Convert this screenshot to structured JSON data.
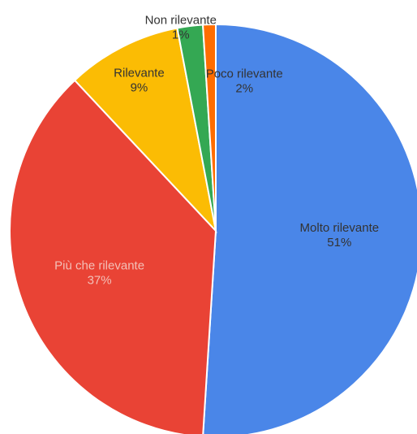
{
  "chart_data": {
    "type": "pie",
    "title": "",
    "start_angle_deg": 0,
    "direction": "clockwise",
    "slices": [
      {
        "label": "Molto rilevante",
        "value": 51,
        "value_label": "51%",
        "color": "#4a86e8",
        "label_color": "#333333"
      },
      {
        "label": "Più che rilevante",
        "value": 37,
        "value_label": "37%",
        "color": "#e94335",
        "label_color": "#f3c0b8"
      },
      {
        "label": "Rilevante",
        "value": 9,
        "value_label": "9%",
        "color": "#fbbc04",
        "label_color": "#333333"
      },
      {
        "label": "Poco rilevante",
        "value": 2,
        "value_label": "2%",
        "color": "#34a853",
        "label_color": "#333333"
      },
      {
        "label": "Non rilevante",
        "value": 1,
        "value_label": "1%",
        "color": "#ff6d01",
        "label_color": "#333333"
      }
    ]
  }
}
